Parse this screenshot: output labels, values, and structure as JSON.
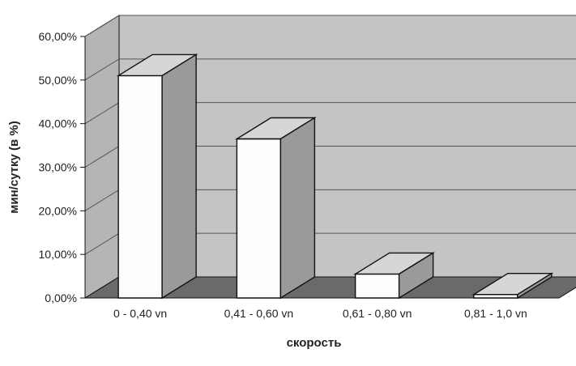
{
  "chart_data": {
    "type": "bar",
    "style": "3d",
    "categories": [
      "0 - 0,40 vn",
      "0,41 - 0,60 vn",
      "0,61 - 0,80 vn",
      "0,81 - 1,0 vn"
    ],
    "values": [
      51.0,
      36.5,
      5.5,
      0.8
    ],
    "value_format": "percent_2dp_comma",
    "yticks": [
      "0,00%",
      "10,00%",
      "20,00%",
      "30,00%",
      "40,00%",
      "50,00%",
      "60,00%"
    ],
    "ylim": [
      0,
      60
    ],
    "title": "",
    "xlabel": "скорость",
    "ylabel": "мин/сутку (в %)",
    "grid": true,
    "legend": "none",
    "colors": {
      "bar_front": "#fdfdfd",
      "bar_top": "#d6d6d6",
      "bar_side": "#9a9a9a",
      "back_wall": "#c4c4c4",
      "side_wall": "#b5b5b5",
      "floor": "#6a6a6a",
      "grid": "#555555",
      "text": "#222222",
      "outline": "#111111"
    }
  }
}
